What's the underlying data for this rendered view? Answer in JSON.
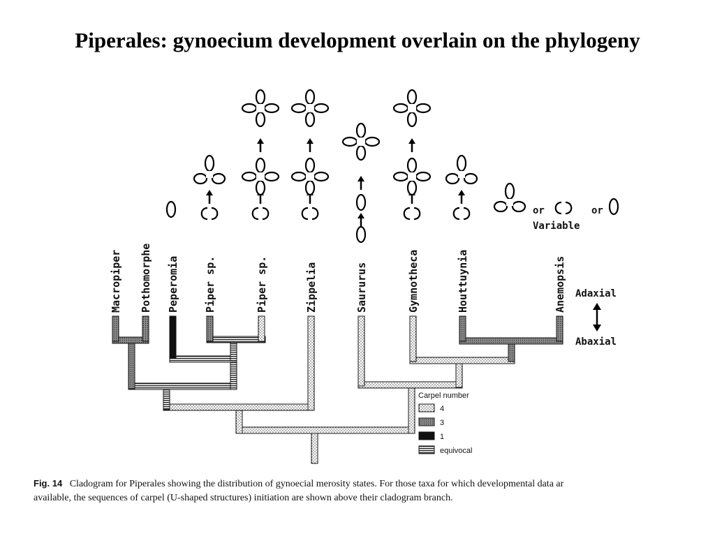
{
  "slide_title": "Piperales: gynoecium development overlain on the phylogeny",
  "taxa": [
    "Macropiper",
    "Pothomorphe",
    "Peperomia",
    "Piper sp.",
    "Piper sp.",
    "Zippelia",
    "Saururus",
    "Gymnotheca",
    "Houttuynia",
    "Anemopsis"
  ],
  "annotations": {
    "or_1": "or",
    "or_2": "or",
    "variable": "Variable",
    "adaxial": "Adaxial",
    "abaxial": "Abaxial"
  },
  "legend": {
    "title": "Carpel number",
    "items": [
      {
        "label": "4",
        "pattern": "dotted"
      },
      {
        "label": "3",
        "pattern": "gray-hatch"
      },
      {
        "label": "1",
        "pattern": "black"
      },
      {
        "label": "equivocal",
        "pattern": "horizontal-lines"
      }
    ]
  },
  "caption": {
    "fig": "Fig. 14",
    "line1": "Cladogram for Piperales showing the distribution of gynoecial merosity states. For those taxa for which developmental data ar",
    "line2": "available, the sequences of carpel (U-shaped structures) initiation are shown above their cladogram branch."
  }
}
